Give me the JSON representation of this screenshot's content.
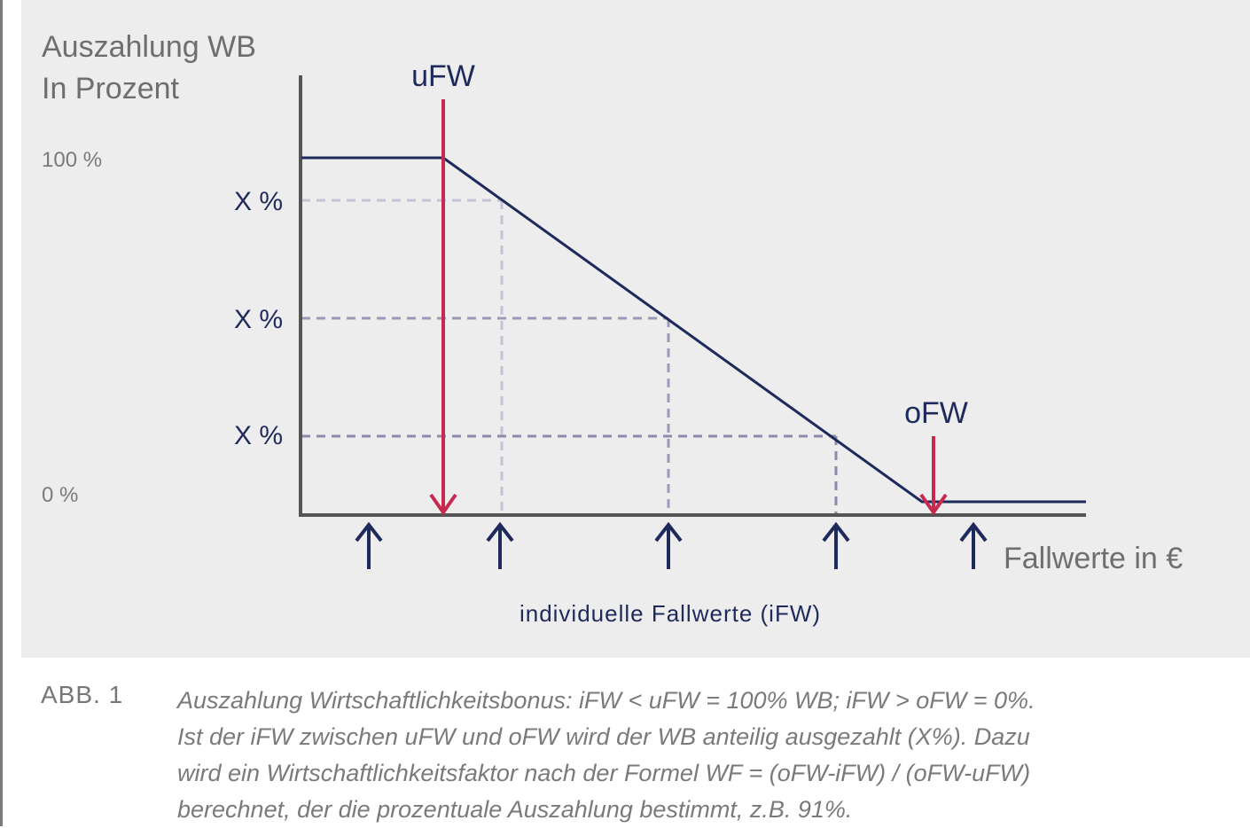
{
  "diagram": {
    "y_axis_title": [
      "Auszahlung WB",
      "In Prozent"
    ],
    "tick_100": "100 %",
    "tick_0": "0 %",
    "x_labels": [
      "X %",
      "X %",
      "X %"
    ],
    "ufw_label": "uFW",
    "ofw_label": "oFW",
    "x_axis_label": "Fallwerte in €",
    "ifw_label": "individuelle Fallwerte (iFW)",
    "colors": {
      "line": "#1f2a5c",
      "marker": "#c8294f",
      "axis": "#555555",
      "text": "#6e6e6e"
    }
  },
  "caption": {
    "label": "ABB. 1",
    "lines": [
      "Auszahlung Wirtschaftlichkeitsbonus: iFW < uFW = 100% WB; iFW > oFW = 0%.",
      "Ist der iFW zwischen uFW und oFW wird der WB anteilig ausgezahlt (X%). Dazu",
      "wird ein  Wirtschaftlichkeitsfaktor nach der Formel WF = (oFW-iFW) / (oFW-uFW)",
      "berechnet, der die prozentuale Auszahlung bestimmt, z.B. 91%."
    ]
  }
}
